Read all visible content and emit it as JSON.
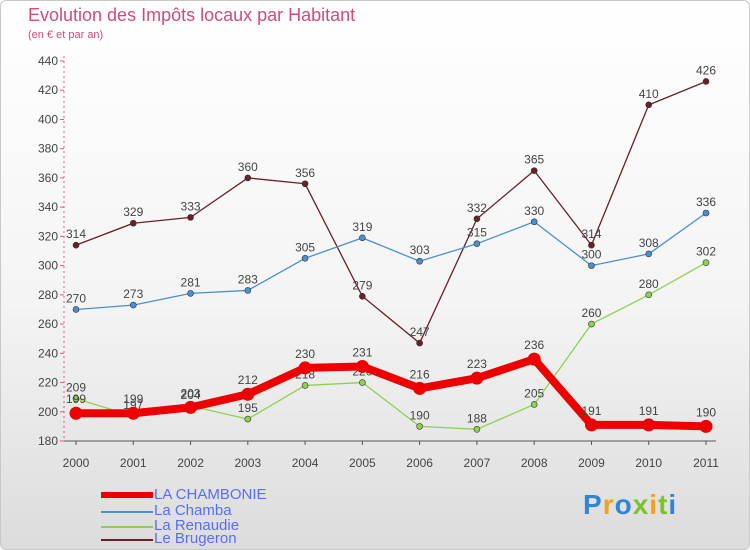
{
  "title": "Evolution des Impôts locaux par Habitant",
  "subtitle": "(en € et par an)",
  "chart_data": {
    "type": "line",
    "title": "Evolution des Impôts locaux par Habitant",
    "subtitle": "(en € et par an)",
    "xlabel": "",
    "ylabel": "",
    "x": [
      "2000",
      "2001",
      "2002",
      "2003",
      "2004",
      "2005",
      "2006",
      "2007",
      "2008",
      "2009",
      "2010",
      "2011"
    ],
    "ylim": [
      180,
      440
    ],
    "yticks": [
      180,
      200,
      220,
      240,
      260,
      280,
      300,
      320,
      340,
      360,
      380,
      400,
      420,
      440
    ],
    "grid": false,
    "legend_position": "bottom-left",
    "series": [
      {
        "name": "Le Brugeron",
        "color": "#6b1f2a",
        "values": [
          314,
          329,
          333,
          360,
          356,
          279,
          247,
          332,
          365,
          314,
          410,
          426
        ],
        "labels": [
          "314",
          "329",
          "333",
          "360",
          "356",
          "279",
          "247",
          "332",
          "365",
          "314",
          "410",
          "426"
        ]
      },
      {
        "name": "La Chamba",
        "color": "#4a90d0",
        "values": [
          270,
          273,
          281,
          283,
          305,
          319,
          303,
          315,
          330,
          300,
          308,
          336
        ],
        "labels": [
          "270",
          "273",
          "281",
          "283",
          "305",
          "319",
          "303",
          "315",
          "330",
          "300",
          "308",
          "336"
        ]
      },
      {
        "name": "La Renaudie",
        "color": "#8fd14f",
        "values": [
          209,
          197,
          204,
          195,
          218,
          220,
          190,
          188,
          205,
          260,
          280,
          302
        ],
        "labels": [
          "209",
          "197",
          "204",
          "195",
          "218",
          "220",
          "190",
          "188",
          "205",
          "260",
          "280",
          "302"
        ]
      },
      {
        "name": "LA CHAMBONIE",
        "color": "#ee0000",
        "values": [
          199,
          199,
          203,
          212,
          230,
          231,
          216,
          223,
          236,
          191,
          191,
          190
        ],
        "labels": [
          "199",
          "199",
          "203",
          "212",
          "230",
          "231",
          "216",
          "223",
          "236",
          "191",
          "191",
          "190"
        ]
      }
    ]
  },
  "legend": [
    {
      "name": "LA CHAMBONIE",
      "color": "#ee0000",
      "text_color": "#5a6cff"
    },
    {
      "name": "La Chamba",
      "color": "#4a90d0",
      "text_color": "#5a6cff"
    },
    {
      "name": "La Renaudie",
      "color": "#8fd14f",
      "text_color": "#5a6cff"
    },
    {
      "name": "Le Brugeron",
      "color": "#6b1f2a",
      "text_color": "#5a6cff"
    }
  ],
  "logo": {
    "text": "Proxiti",
    "letters": [
      "P",
      "r",
      "o",
      "x",
      "i",
      "t",
      "i"
    ],
    "colors": [
      "#2f86d6",
      "#f2a31b",
      "#2f86d6",
      "#7cc22e",
      "#f2a31b",
      "#7cc22e",
      "#2f86d6"
    ]
  }
}
